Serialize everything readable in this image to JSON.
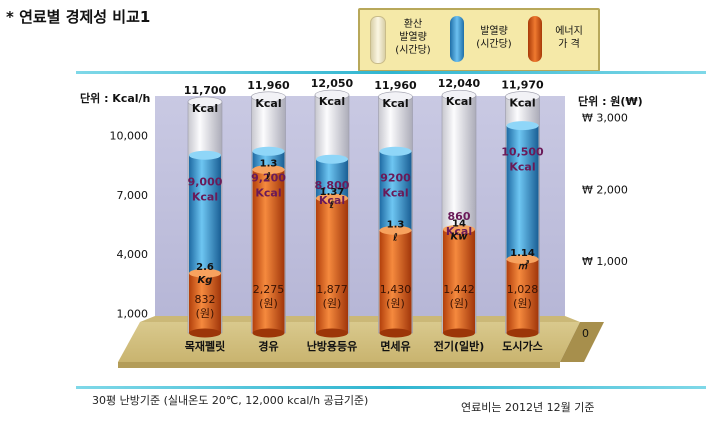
{
  "title": "* 연료별 경제성 비교1",
  "legend": [
    {
      "label_lines": [
        "환산",
        "발열량",
        "(시간당)"
      ],
      "color": "#efe6c0"
    },
    {
      "label_lines": [
        "발열량",
        "(시간당)"
      ],
      "color": "#3f9fdc"
    },
    {
      "label_lines": [
        "에너지",
        "가 격"
      ],
      "color": "#e0581a"
    }
  ],
  "left_unit": "단위 : Kcal/h",
  "right_unit": "단위 : 원(₩)",
  "footer_left": "30평 난방기준 (실내온도 20℃, 12,000 kcal/h 공급기준)",
  "footer_right": "연료비는 2012년 12월 기준",
  "chart_data": {
    "type": "bar",
    "title": "연료별 경제성 비교1",
    "categories": [
      "목재펠릿",
      "경유",
      "난방용등유",
      "면세유",
      "전기(일반)",
      "도시가스"
    ],
    "left_axis": {
      "label": "단위 : Kcal/h",
      "ticks": [
        "10,000",
        "7,000",
        "4,000",
        "1,000"
      ],
      "range": [
        0,
        12000
      ]
    },
    "right_axis": {
      "label": "단위 : 원(₩)",
      "ticks": [
        "₩ 3,000",
        "₩ 2,000",
        "₩ 1,000",
        "0"
      ],
      "range": [
        0,
        3300
      ]
    },
    "series": [
      {
        "name": "환산 발열량 (시간당)",
        "values": [
          11700,
          11960,
          12050,
          11960,
          12040,
          11970
        ],
        "labels": [
          "11,700 Kcal",
          "11,960 Kcal",
          "12,050 Kcal",
          "11,960 Kcal",
          "12,040 Kcal",
          "11,970 Kcal"
        ]
      },
      {
        "name": "발열량 (시간당)",
        "values": [
          9000,
          9200,
          8800,
          9200,
          860,
          10500
        ],
        "labels": [
          "9,000 Kcal",
          "9,200 Kcal",
          "8,800 Kcal",
          "9200 Kcal",
          "860 Kcal",
          "10,500 Kcal"
        ]
      },
      {
        "name": "에너지 가격",
        "values": [
          832,
          2275,
          1877,
          1430,
          1442,
          1028
        ],
        "labels": [
          "832 (원)",
          "2,275 (원)",
          "1,877 (원)",
          "1,430 (원)",
          "1,442 (원)",
          "1,028 (원)"
        ]
      }
    ],
    "unit_quantity": [
      "2.6",
      "1.3",
      "1.37",
      "1.3",
      "14",
      "1.14"
    ],
    "unit_symbol": [
      "Kg",
      "ℓ",
      "ℓ",
      "ℓ",
      "Kw",
      "㎥"
    ]
  }
}
